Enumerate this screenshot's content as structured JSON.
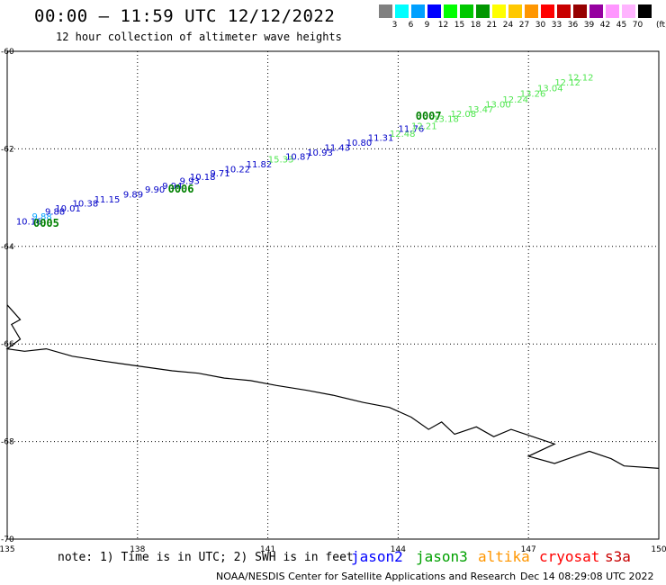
{
  "header": {
    "title": "00:00 – 11:59 UTC 12/12/2022",
    "subtitle": "12 hour collection of altimeter wave heights"
  },
  "legend_scale": {
    "unit": "(ft)",
    "labels": [
      "3",
      "6",
      "9",
      "12",
      "15",
      "18",
      "21",
      "24",
      "27",
      "30",
      "33",
      "36",
      "39",
      "42",
      "45",
      "70"
    ],
    "colors": [
      "#808080",
      "#00ffff",
      "#00a0ff",
      "#0000ff",
      "#00ff00",
      "#00c800",
      "#009600",
      "#ffff00",
      "#ffc800",
      "#ff9600",
      "#ff0000",
      "#c80000",
      "#960000",
      "#9600a0",
      "#ff96ff",
      "#ffb4ff",
      "#000000"
    ]
  },
  "map": {
    "lon_labels": [
      "135",
      "138",
      "141",
      "144",
      "147",
      "150"
    ],
    "lat_labels": [
      "-60",
      "-62",
      "-64",
      "-66",
      "-68",
      "-70"
    ],
    "coastline": [
      [
        -65.2,
        135.0
      ],
      [
        -65.5,
        135.3
      ],
      [
        -65.6,
        135.1
      ],
      [
        -65.9,
        135.3
      ],
      [
        -66.1,
        135.0
      ],
      [
        -66.15,
        135.4
      ],
      [
        -66.1,
        135.9
      ],
      [
        -66.25,
        136.5
      ],
      [
        -66.35,
        137.2
      ],
      [
        -66.45,
        138.0
      ],
      [
        -66.55,
        138.8
      ],
      [
        -66.6,
        139.4
      ],
      [
        -66.7,
        140.0
      ],
      [
        -66.75,
        140.6
      ],
      [
        -66.85,
        141.2
      ],
      [
        -66.95,
        141.9
      ],
      [
        -67.05,
        142.5
      ],
      [
        -67.2,
        143.2
      ],
      [
        -67.3,
        143.8
      ],
      [
        -67.5,
        144.3
      ],
      [
        -67.75,
        144.7
      ],
      [
        -67.6,
        145.0
      ],
      [
        -67.85,
        145.3
      ],
      [
        -67.7,
        145.8
      ],
      [
        -67.9,
        146.2
      ],
      [
        -67.75,
        146.6
      ],
      [
        -67.9,
        147.1
      ],
      [
        -68.05,
        147.6
      ],
      [
        -68.3,
        147.0
      ],
      [
        -68.45,
        147.6
      ],
      [
        -68.2,
        148.4
      ],
      [
        -68.35,
        148.9
      ],
      [
        -68.5,
        149.2
      ],
      [
        -68.55,
        150.0
      ]
    ],
    "passes": [
      {
        "label": "0005",
        "lat": -63.6,
        "lon": 135.9
      },
      {
        "label": "0006",
        "lat": -62.9,
        "lon": 139.0
      },
      {
        "label": "0007",
        "lat": -61.4,
        "lon": 144.7
      }
    ],
    "track_points": [
      {
        "v": "10.16",
        "lat": -63.55,
        "lon": 135.5,
        "c": "#0000c8"
      },
      {
        "v": "9.88",
        "lat": -63.45,
        "lon": 135.8,
        "c": "#00a0ff"
      },
      {
        "v": "9.88",
        "lat": -63.35,
        "lon": 136.1,
        "c": "#0000c8"
      },
      {
        "v": "10.01",
        "lat": -63.28,
        "lon": 136.4,
        "c": "#0000c8"
      },
      {
        "v": "10.38",
        "lat": -63.18,
        "lon": 136.8,
        "c": "#0000c8"
      },
      {
        "v": "11.15",
        "lat": -63.1,
        "lon": 137.3,
        "c": "#0000c8"
      },
      {
        "v": "9.89",
        "lat": -63.0,
        "lon": 137.9,
        "c": "#0000c8"
      },
      {
        "v": "9.90",
        "lat": -62.9,
        "lon": 138.4,
        "c": "#0000c8"
      },
      {
        "v": "9.94",
        "lat": -62.82,
        "lon": 138.8,
        "c": "#0000c8"
      },
      {
        "v": "9.93",
        "lat": -62.72,
        "lon": 139.2,
        "c": "#0000c8"
      },
      {
        "v": "10.18",
        "lat": -62.64,
        "lon": 139.5,
        "c": "#0000c8"
      },
      {
        "v": "9.71",
        "lat": -62.56,
        "lon": 139.9,
        "c": "#0000c8"
      },
      {
        "v": "10.22",
        "lat": -62.48,
        "lon": 140.3,
        "c": "#0000c8"
      },
      {
        "v": "11.82",
        "lat": -62.38,
        "lon": 140.8,
        "c": "#0000c8"
      },
      {
        "v": "15.33",
        "lat": -62.28,
        "lon": 141.3,
        "c": "#50e650"
      },
      {
        "v": "10.87",
        "lat": -62.22,
        "lon": 141.7,
        "c": "#0000c8"
      },
      {
        "v": "10.93",
        "lat": -62.14,
        "lon": 142.2,
        "c": "#0000c8"
      },
      {
        "v": "11.43",
        "lat": -62.04,
        "lon": 142.6,
        "c": "#0000c8"
      },
      {
        "v": "10.80",
        "lat": -61.94,
        "lon": 143.1,
        "c": "#0000c8"
      },
      {
        "v": "11.31",
        "lat": -61.84,
        "lon": 143.6,
        "c": "#0000c8"
      },
      {
        "v": "12.48",
        "lat": -61.75,
        "lon": 144.1,
        "c": "#50e650"
      },
      {
        "v": "11.76",
        "lat": -61.65,
        "lon": 144.3,
        "c": "#0000c8"
      },
      {
        "v": "12.21",
        "lat": -61.6,
        "lon": 144.6,
        "c": "#50e650"
      },
      {
        "v": "13.18",
        "lat": -61.45,
        "lon": 145.1,
        "c": "#50e650"
      },
      {
        "v": "12.08",
        "lat": -61.35,
        "lon": 145.5,
        "c": "#50e650"
      },
      {
        "v": "13.47",
        "lat": -61.25,
        "lon": 145.9,
        "c": "#50e650"
      },
      {
        "v": "13.00",
        "lat": -61.15,
        "lon": 146.3,
        "c": "#50e650"
      },
      {
        "v": "12.24",
        "lat": -61.05,
        "lon": 146.7,
        "c": "#50e650"
      },
      {
        "v": "13.26",
        "lat": -60.93,
        "lon": 147.1,
        "c": "#50e650"
      },
      {
        "v": "13.04",
        "lat": -60.82,
        "lon": 147.5,
        "c": "#50e650"
      },
      {
        "v": "12.12",
        "lat": -60.7,
        "lon": 147.9,
        "c": "#50e650"
      },
      {
        "v": "12.12",
        "lat": -60.6,
        "lon": 148.2,
        "c": "#50e650"
      }
    ]
  },
  "footer": {
    "note": "note: 1) Time is in UTC; 2) SWH is in feet",
    "satellites": [
      {
        "name": "jason2",
        "color": "#0000ff"
      },
      {
        "name": "jason3",
        "color": "#00a000"
      },
      {
        "name": "altika",
        "color": "#ff9600"
      },
      {
        "name": "cryosat",
        "color": "#ff0000"
      },
      {
        "name": "s3a",
        "color": "#c80000"
      }
    ],
    "credit": "NOAA/NESDIS Center for Satellite Applications and Research",
    "generated": "Dec 14 08:29:08 UTC 2022"
  }
}
